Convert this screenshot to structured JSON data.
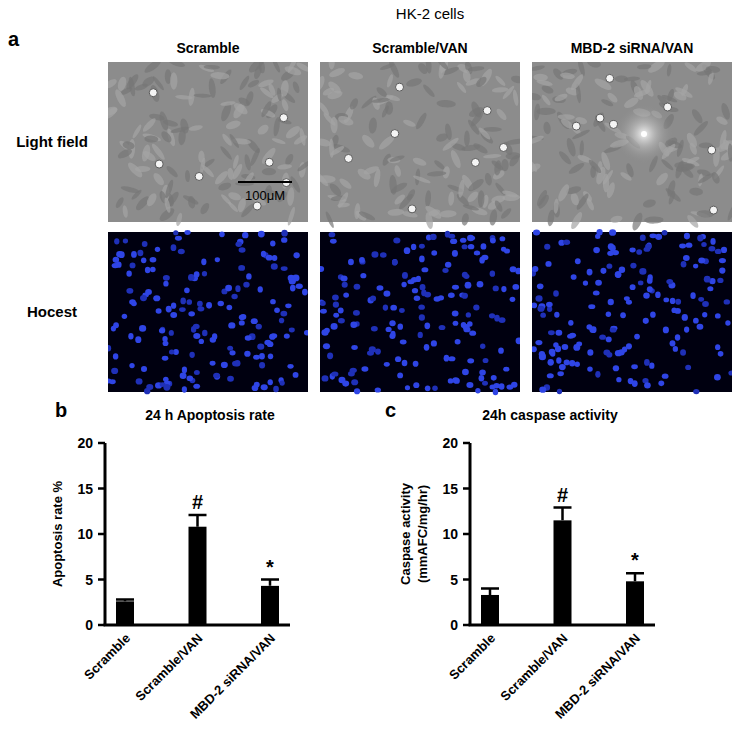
{
  "figure": {
    "title": "HK-2 cells",
    "panel_labels": [
      "a",
      "b",
      "c"
    ],
    "columns": [
      "Scramble",
      "Scramble/VAN",
      "MBD-2 siRNA/VAN"
    ],
    "rows": [
      "Light field",
      "Hocest"
    ],
    "scale_bar": "100μM"
  },
  "chart_data": [
    {
      "type": "bar",
      "title": "24 h Apoptosis rate",
      "y_label": [
        "Apoptosis rate %"
      ],
      "categories": [
        "Scramble",
        "Scramble/VAN",
        "MBD-2 siRNA/VAN"
      ],
      "values": [
        2.6,
        10.8,
        4.3
      ],
      "errors": [
        0.2,
        1.3,
        0.7
      ],
      "significance": [
        null,
        "#",
        "*"
      ],
      "color": "#000000",
      "ylim": [
        0,
        20
      ],
      "yticks": [
        0,
        5,
        10,
        15,
        20
      ],
      "grid": false
    },
    {
      "type": "bar",
      "title": "24h caspase activity",
      "y_label": [
        "Caspase activity",
        "(mmAFC/mg/hr)"
      ],
      "categories": [
        "Scramble",
        "Scramble/VAN",
        "MBD-2 siRNA/VAN"
      ],
      "values": [
        3.3,
        11.5,
        4.8
      ],
      "errors": [
        0.7,
        1.4,
        0.9
      ],
      "significance": [
        null,
        "#",
        "*"
      ],
      "color": "#000000",
      "ylim": [
        0,
        20
      ],
      "yticks": [
        0,
        5,
        10,
        15,
        20
      ],
      "grid": false
    }
  ]
}
